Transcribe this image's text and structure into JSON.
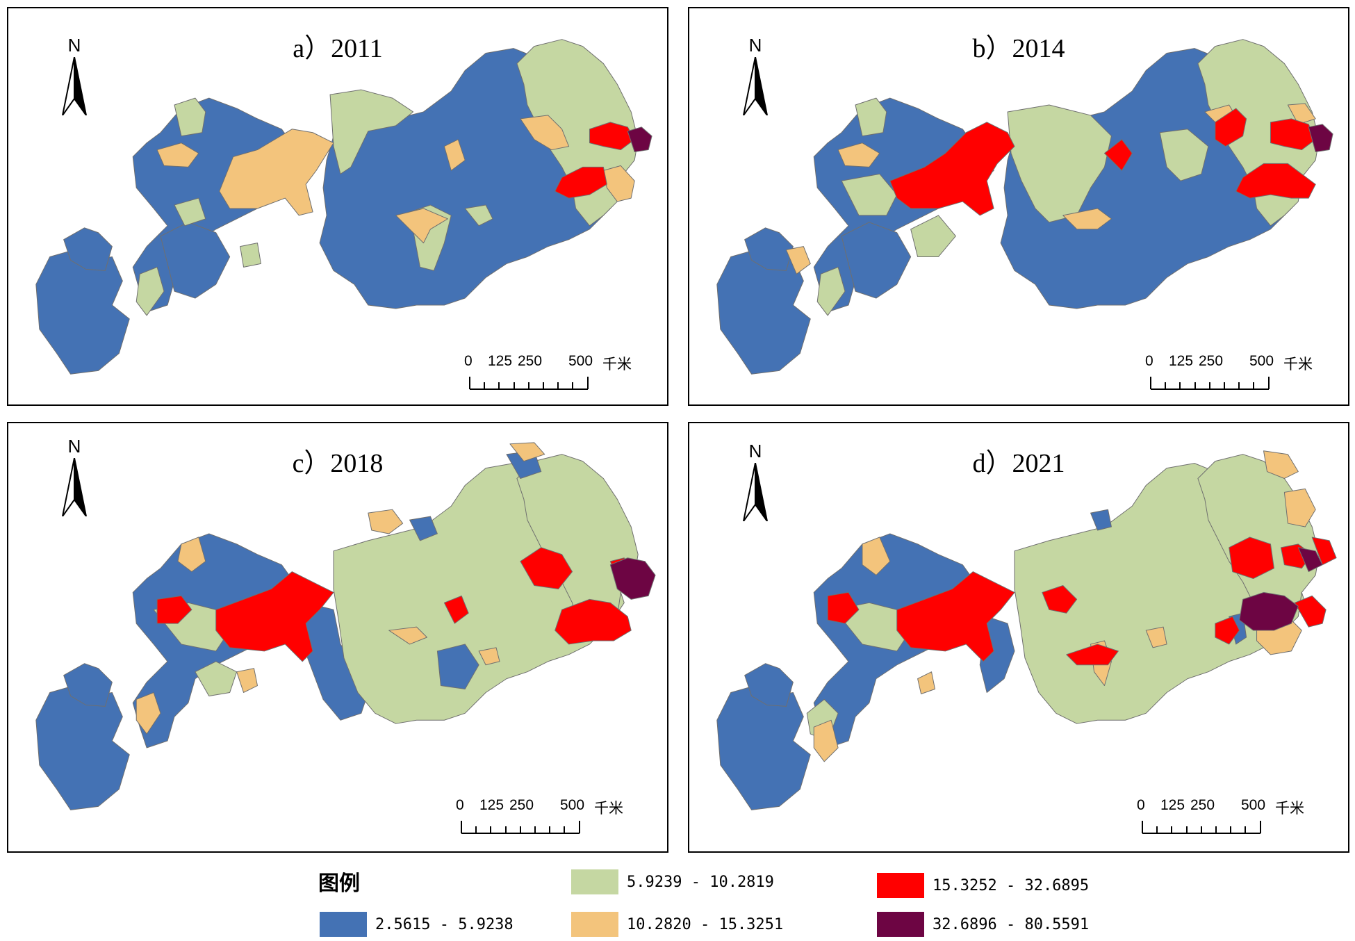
{
  "colors": {
    "class1": "#4472B4",
    "class2": "#C5D7A2",
    "class3": "#F3C47C",
    "class4": "#FF0000",
    "class5": "#6D0543",
    "boundary": "#6f6f6f",
    "frame": "#000000"
  },
  "panels": [
    {
      "title": "a）2011",
      "north": "N",
      "scale": {
        "l0": "0",
        "l1": "125",
        "l2": "250",
        "l3": "500",
        "unit": "千米"
      }
    },
    {
      "title": "b）2014",
      "north": "N",
      "scale": {
        "l0": "0",
        "l1": "125",
        "l2": "250",
        "l3": "500",
        "unit": "千米"
      }
    },
    {
      "title": "c）2018",
      "north": "N",
      "scale": {
        "l0": "0",
        "l1": "125",
        "l2": "250",
        "l3": "500",
        "unit": "千米"
      }
    },
    {
      "title": "d）2021",
      "north": "N",
      "scale": {
        "l0": "0",
        "l1": "125",
        "l2": "250",
        "l3": "500",
        "unit": "千米"
      }
    }
  ],
  "legend": {
    "title": "图例",
    "items": [
      {
        "label": "2.5615 - 5.9238",
        "color": "#4472B4"
      },
      {
        "label": "5.9239 - 10.2819",
        "color": "#C5D7A2"
      },
      {
        "label": "10.2820 - 15.3251",
        "color": "#F3C47C"
      },
      {
        "label": "15.3252 - 32.6895",
        "color": "#FF0000"
      },
      {
        "label": "32.6896 - 80.5591",
        "color": "#6D0543"
      }
    ]
  }
}
